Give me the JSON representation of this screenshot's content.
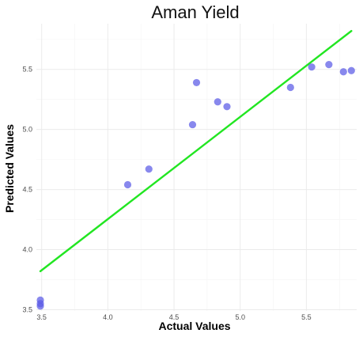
{
  "chart_data": {
    "type": "scatter",
    "title": "Aman Yield",
    "xlabel": "Actual Values",
    "ylabel": "Predicted Values",
    "xlim": [
      3.46,
      5.88
    ],
    "ylim": [
      3.49,
      5.88
    ],
    "xticks": [
      "3.5",
      "4.0",
      "4.5",
      "5.0",
      "5.5"
    ],
    "yticks": [
      "3.5",
      "4.0",
      "4.5",
      "5.0",
      "5.5"
    ],
    "grid": true,
    "legend": "none",
    "points": [
      {
        "x": 3.49,
        "y": 3.58
      },
      {
        "x": 3.49,
        "y": 3.55
      },
      {
        "x": 3.49,
        "y": 3.53
      },
      {
        "x": 4.15,
        "y": 4.54
      },
      {
        "x": 4.31,
        "y": 4.67
      },
      {
        "x": 4.64,
        "y": 5.04
      },
      {
        "x": 4.67,
        "y": 5.39
      },
      {
        "x": 4.83,
        "y": 5.23
      },
      {
        "x": 4.9,
        "y": 5.19
      },
      {
        "x": 5.38,
        "y": 5.35
      },
      {
        "x": 5.54,
        "y": 5.52
      },
      {
        "x": 5.67,
        "y": 5.54
      },
      {
        "x": 5.78,
        "y": 5.48
      },
      {
        "x": 5.84,
        "y": 5.49
      }
    ],
    "fit_line": {
      "x": [
        3.49,
        5.84
      ],
      "y": [
        3.82,
        5.82
      ]
    },
    "colors": {
      "points": "#5a5ae6",
      "fit_line": "#22e622",
      "grid": "#ebebeb"
    }
  }
}
